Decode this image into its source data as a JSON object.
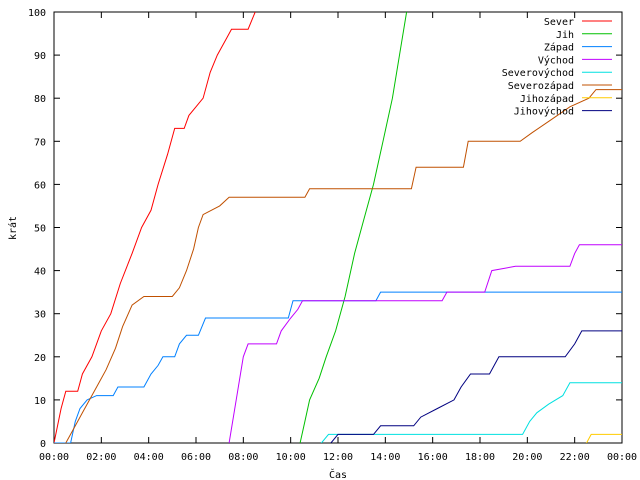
{
  "chart_data": {
    "type": "line",
    "xlabel": "Čas",
    "ylabel": "krát",
    "xlim": [
      0,
      24
    ],
    "ylim": [
      0,
      100
    ],
    "x_ticks": [
      0,
      2,
      4,
      6,
      8,
      10,
      12,
      14,
      16,
      18,
      20,
      22,
      24
    ],
    "x_tick_labels": [
      "00:00",
      "02:00",
      "04:00",
      "06:00",
      "08:00",
      "10:00",
      "12:00",
      "14:00",
      "16:00",
      "18:00",
      "20:00",
      "22:00",
      "00:00"
    ],
    "y_ticks": [
      0,
      10,
      20,
      30,
      40,
      50,
      60,
      70,
      80,
      90,
      100
    ],
    "y_tick_labels": [
      "0",
      "10",
      "20",
      "30",
      "40",
      "50",
      "60",
      "70",
      "80",
      "90",
      "100"
    ],
    "grid": false,
    "legend_position": "top-right",
    "series": [
      {
        "name": "Sever",
        "color": "#ff0000",
        "points": [
          [
            0,
            0
          ],
          [
            0.3,
            8
          ],
          [
            0.5,
            12
          ],
          [
            1.0,
            12
          ],
          [
            1.2,
            16
          ],
          [
            1.6,
            20
          ],
          [
            2.0,
            26
          ],
          [
            2.4,
            30
          ],
          [
            2.8,
            37
          ],
          [
            3.3,
            44
          ],
          [
            3.7,
            50
          ],
          [
            4.1,
            54
          ],
          [
            4.4,
            60
          ],
          [
            4.8,
            67
          ],
          [
            5.1,
            73
          ],
          [
            5.5,
            73
          ],
          [
            5.7,
            76
          ],
          [
            6.0,
            78
          ],
          [
            6.3,
            80
          ],
          [
            6.6,
            86
          ],
          [
            6.9,
            90
          ],
          [
            7.3,
            94
          ],
          [
            7.5,
            96
          ],
          [
            8.2,
            96
          ],
          [
            8.5,
            100
          ]
        ]
      },
      {
        "name": "Jih",
        "color": "#00c000",
        "points": [
          [
            10.4,
            0
          ],
          [
            10.6,
            5
          ],
          [
            10.8,
            10
          ],
          [
            11.2,
            15
          ],
          [
            11.5,
            20
          ],
          [
            11.9,
            26
          ],
          [
            12.3,
            34
          ],
          [
            12.7,
            44
          ],
          [
            13.1,
            52
          ],
          [
            13.5,
            60
          ],
          [
            13.9,
            70
          ],
          [
            14.3,
            80
          ],
          [
            14.6,
            90
          ],
          [
            14.9,
            100
          ]
        ]
      },
      {
        "name": "Západ",
        "color": "#0080ff",
        "points": [
          [
            0,
            0
          ],
          [
            0.7,
            0
          ],
          [
            0.9,
            5
          ],
          [
            1.1,
            8
          ],
          [
            1.4,
            10
          ],
          [
            1.8,
            11
          ],
          [
            2.5,
            11
          ],
          [
            2.7,
            13
          ],
          [
            3.8,
            13
          ],
          [
            4.1,
            16
          ],
          [
            4.4,
            18
          ],
          [
            4.6,
            20
          ],
          [
            5.1,
            20
          ],
          [
            5.3,
            23
          ],
          [
            5.6,
            25
          ],
          [
            6.1,
            25
          ],
          [
            6.4,
            29
          ],
          [
            9.9,
            29
          ],
          [
            10.1,
            33
          ],
          [
            13.6,
            33
          ],
          [
            13.8,
            35
          ],
          [
            24,
            35
          ]
        ]
      },
      {
        "name": "Východ",
        "color": "#c000ff",
        "points": [
          [
            7.4,
            0
          ],
          [
            7.7,
            10
          ],
          [
            8.0,
            20
          ],
          [
            8.2,
            23
          ],
          [
            9.4,
            23
          ],
          [
            9.6,
            26
          ],
          [
            10.0,
            29
          ],
          [
            10.3,
            31
          ],
          [
            10.5,
            33
          ],
          [
            16.4,
            33
          ],
          [
            16.6,
            35
          ],
          [
            18.2,
            35
          ],
          [
            18.5,
            40
          ],
          [
            19.5,
            41
          ],
          [
            21.8,
            41
          ],
          [
            22.0,
            44
          ],
          [
            22.2,
            46
          ],
          [
            24,
            46
          ]
        ]
      },
      {
        "name": "Severovýchod",
        "color": "#00e0e0",
        "points": [
          [
            11.3,
            0
          ],
          [
            11.6,
            2
          ],
          [
            18.6,
            2
          ],
          [
            19.8,
            2
          ],
          [
            20.1,
            5
          ],
          [
            20.4,
            7
          ],
          [
            20.9,
            9
          ],
          [
            21.5,
            11
          ],
          [
            21.8,
            14
          ],
          [
            24,
            14
          ]
        ]
      },
      {
        "name": "Severozápad",
        "color": "#c05000",
        "points": [
          [
            0.5,
            0
          ],
          [
            0.8,
            3
          ],
          [
            1.2,
            7
          ],
          [
            1.8,
            13
          ],
          [
            2.2,
            17
          ],
          [
            2.6,
            22
          ],
          [
            2.9,
            27
          ],
          [
            3.3,
            32
          ],
          [
            3.8,
            34
          ],
          [
            5.0,
            34
          ],
          [
            5.3,
            36
          ],
          [
            5.6,
            40
          ],
          [
            5.9,
            45
          ],
          [
            6.1,
            50
          ],
          [
            6.3,
            53
          ],
          [
            7.0,
            55
          ],
          [
            7.4,
            57
          ],
          [
            10.6,
            57
          ],
          [
            10.8,
            59
          ],
          [
            15.1,
            59
          ],
          [
            15.3,
            64
          ],
          [
            17.3,
            64
          ],
          [
            17.5,
            70
          ],
          [
            19.7,
            70
          ],
          [
            20.2,
            72
          ],
          [
            21.0,
            75
          ],
          [
            21.8,
            78
          ],
          [
            22.6,
            80
          ],
          [
            22.9,
            82
          ],
          [
            24,
            82
          ]
        ]
      },
      {
        "name": "Jihozápad",
        "color": "#ffcc00",
        "points": [
          [
            22.5,
            0
          ],
          [
            22.7,
            2
          ],
          [
            24,
            2
          ]
        ]
      },
      {
        "name": "Jihovýchod",
        "color": "#000080",
        "points": [
          [
            11.7,
            0
          ],
          [
            12.0,
            2
          ],
          [
            13.5,
            2
          ],
          [
            13.8,
            4
          ],
          [
            15.2,
            4
          ],
          [
            15.5,
            6
          ],
          [
            16.2,
            8
          ],
          [
            16.9,
            10
          ],
          [
            17.2,
            13
          ],
          [
            17.6,
            16
          ],
          [
            18.4,
            16
          ],
          [
            18.8,
            20
          ],
          [
            21.6,
            20
          ],
          [
            22.0,
            23
          ],
          [
            22.3,
            26
          ],
          [
            24,
            26
          ]
        ]
      }
    ]
  }
}
